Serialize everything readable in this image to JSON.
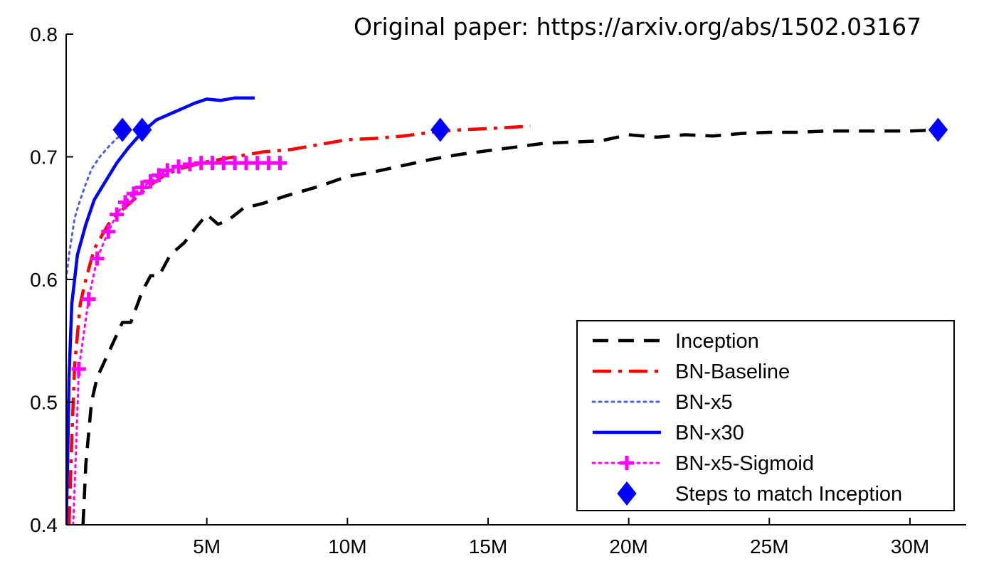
{
  "annotation": "Original paper: https://arxiv.org/abs/1502.03167",
  "chart_data": {
    "type": "line",
    "title": "",
    "xlabel": "",
    "ylabel": "",
    "xlim": [
      0,
      32000000
    ],
    "ylim": [
      0.4,
      0.8
    ],
    "x_ticks": [
      {
        "value": 5000000,
        "label": "5M"
      },
      {
        "value": 10000000,
        "label": "10M"
      },
      {
        "value": 15000000,
        "label": "15M"
      },
      {
        "value": 20000000,
        "label": "20M"
      },
      {
        "value": 25000000,
        "label": "25M"
      },
      {
        "value": 30000000,
        "label": "30M"
      }
    ],
    "y_ticks": [
      {
        "value": 0.4,
        "label": "0.4"
      },
      {
        "value": 0.5,
        "label": "0.5"
      },
      {
        "value": 0.6,
        "label": "0.6"
      },
      {
        "value": 0.7,
        "label": "0.7"
      },
      {
        "value": 0.8,
        "label": "0.8"
      }
    ],
    "grid": false,
    "legend_position": "bottom-right",
    "series": [
      {
        "name": "Inception",
        "color": "#000000",
        "style": "dashed",
        "marker": "none",
        "points": [
          [
            600000,
            0.4
          ],
          [
            700000,
            0.45
          ],
          [
            900000,
            0.5
          ],
          [
            1100000,
            0.52
          ],
          [
            1500000,
            0.54
          ],
          [
            2000000,
            0.565
          ],
          [
            2300000,
            0.565
          ],
          [
            2700000,
            0.59
          ],
          [
            3000000,
            0.603
          ],
          [
            3300000,
            0.603
          ],
          [
            3700000,
            0.62
          ],
          [
            4200000,
            0.63
          ],
          [
            4600000,
            0.642
          ],
          [
            5000000,
            0.653
          ],
          [
            5400000,
            0.645
          ],
          [
            5800000,
            0.649
          ],
          [
            6300000,
            0.658
          ],
          [
            7000000,
            0.662
          ],
          [
            7800000,
            0.668
          ],
          [
            9000000,
            0.676
          ],
          [
            10000000,
            0.684
          ],
          [
            11000000,
            0.688
          ],
          [
            12000000,
            0.693
          ],
          [
            13000000,
            0.698
          ],
          [
            14000000,
            0.702
          ],
          [
            15000000,
            0.705
          ],
          [
            16000000,
            0.708
          ],
          [
            17000000,
            0.711
          ],
          [
            18000000,
            0.712
          ],
          [
            19000000,
            0.713
          ],
          [
            20000000,
            0.718
          ],
          [
            21000000,
            0.716
          ],
          [
            22000000,
            0.718
          ],
          [
            23000000,
            0.717
          ],
          [
            24000000,
            0.719
          ],
          [
            25000000,
            0.72
          ],
          [
            26000000,
            0.72
          ],
          [
            27000000,
            0.721
          ],
          [
            28000000,
            0.721
          ],
          [
            29000000,
            0.721
          ],
          [
            30000000,
            0.721
          ],
          [
            31000000,
            0.722
          ]
        ]
      },
      {
        "name": "BN-Baseline",
        "color": "#ff0000",
        "style": "dashdot",
        "marker": "none",
        "points": [
          [
            100000,
            0.4
          ],
          [
            200000,
            0.47
          ],
          [
            300000,
            0.53
          ],
          [
            500000,
            0.58
          ],
          [
            700000,
            0.6
          ],
          [
            1000000,
            0.625
          ],
          [
            1500000,
            0.645
          ],
          [
            2000000,
            0.657
          ],
          [
            2500000,
            0.667
          ],
          [
            3000000,
            0.677
          ],
          [
            3500000,
            0.685
          ],
          [
            4000000,
            0.69
          ],
          [
            5000000,
            0.696
          ],
          [
            6000000,
            0.7
          ],
          [
            7000000,
            0.704
          ],
          [
            8000000,
            0.706
          ],
          [
            9000000,
            0.71
          ],
          [
            10000000,
            0.714
          ],
          [
            11000000,
            0.715
          ],
          [
            12000000,
            0.717
          ],
          [
            13000000,
            0.72
          ],
          [
            14000000,
            0.722
          ],
          [
            15000000,
            0.723
          ],
          [
            16500000,
            0.725
          ]
        ]
      },
      {
        "name": "BN-x5",
        "color": "#4a5ef0",
        "style": "dotted",
        "marker": "none",
        "points": [
          [
            0,
            0.6
          ],
          [
            100000,
            0.62
          ],
          [
            300000,
            0.65
          ],
          [
            500000,
            0.665
          ],
          [
            700000,
            0.678
          ],
          [
            900000,
            0.69
          ],
          [
            1200000,
            0.7
          ],
          [
            1500000,
            0.708
          ],
          [
            1800000,
            0.715
          ],
          [
            2100000,
            0.72
          ]
        ]
      },
      {
        "name": "BN-x30",
        "color": "#0000ff",
        "style": "solid",
        "marker": "none",
        "points": [
          [
            0,
            0.4
          ],
          [
            50000,
            0.45
          ],
          [
            100000,
            0.52
          ],
          [
            200000,
            0.58
          ],
          [
            400000,
            0.62
          ],
          [
            700000,
            0.645
          ],
          [
            1000000,
            0.665
          ],
          [
            1400000,
            0.68
          ],
          [
            1800000,
            0.695
          ],
          [
            2200000,
            0.707
          ],
          [
            2700000,
            0.72
          ],
          [
            3200000,
            0.73
          ],
          [
            3700000,
            0.735
          ],
          [
            4200000,
            0.74
          ],
          [
            4600000,
            0.744
          ],
          [
            5000000,
            0.747
          ],
          [
            5500000,
            0.746
          ],
          [
            6000000,
            0.748
          ],
          [
            6700000,
            0.748
          ]
        ]
      },
      {
        "name": "BN-x5-Sigmoid",
        "color": "#ff00ff",
        "style": "dotted",
        "marker": "plus",
        "points": [
          [
            250000,
            0.4
          ],
          [
            350000,
            0.46
          ],
          [
            450000,
            0.527
          ],
          [
            800000,
            0.584
          ],
          [
            1100000,
            0.617
          ],
          [
            1500000,
            0.639
          ],
          [
            1800000,
            0.653
          ],
          [
            2100000,
            0.663
          ],
          [
            2400000,
            0.67
          ],
          [
            2700000,
            0.675
          ],
          [
            3000000,
            0.68
          ],
          [
            3300000,
            0.685
          ],
          [
            3600000,
            0.689
          ],
          [
            4000000,
            0.692
          ],
          [
            4400000,
            0.694
          ],
          [
            4800000,
            0.695
          ],
          [
            5200000,
            0.695
          ],
          [
            5600000,
            0.695
          ],
          [
            6000000,
            0.695
          ],
          [
            6400000,
            0.695
          ],
          [
            6800000,
            0.695
          ],
          [
            7200000,
            0.695
          ],
          [
            7600000,
            0.695
          ]
        ]
      },
      {
        "name": "Steps to match Inception",
        "color": "#0000ff",
        "style": "none",
        "marker": "diamond",
        "points": [
          [
            2000000,
            0.722
          ],
          [
            2700000,
            0.722
          ],
          [
            13300000,
            0.722
          ],
          [
            31000000,
            0.722
          ]
        ]
      }
    ]
  }
}
